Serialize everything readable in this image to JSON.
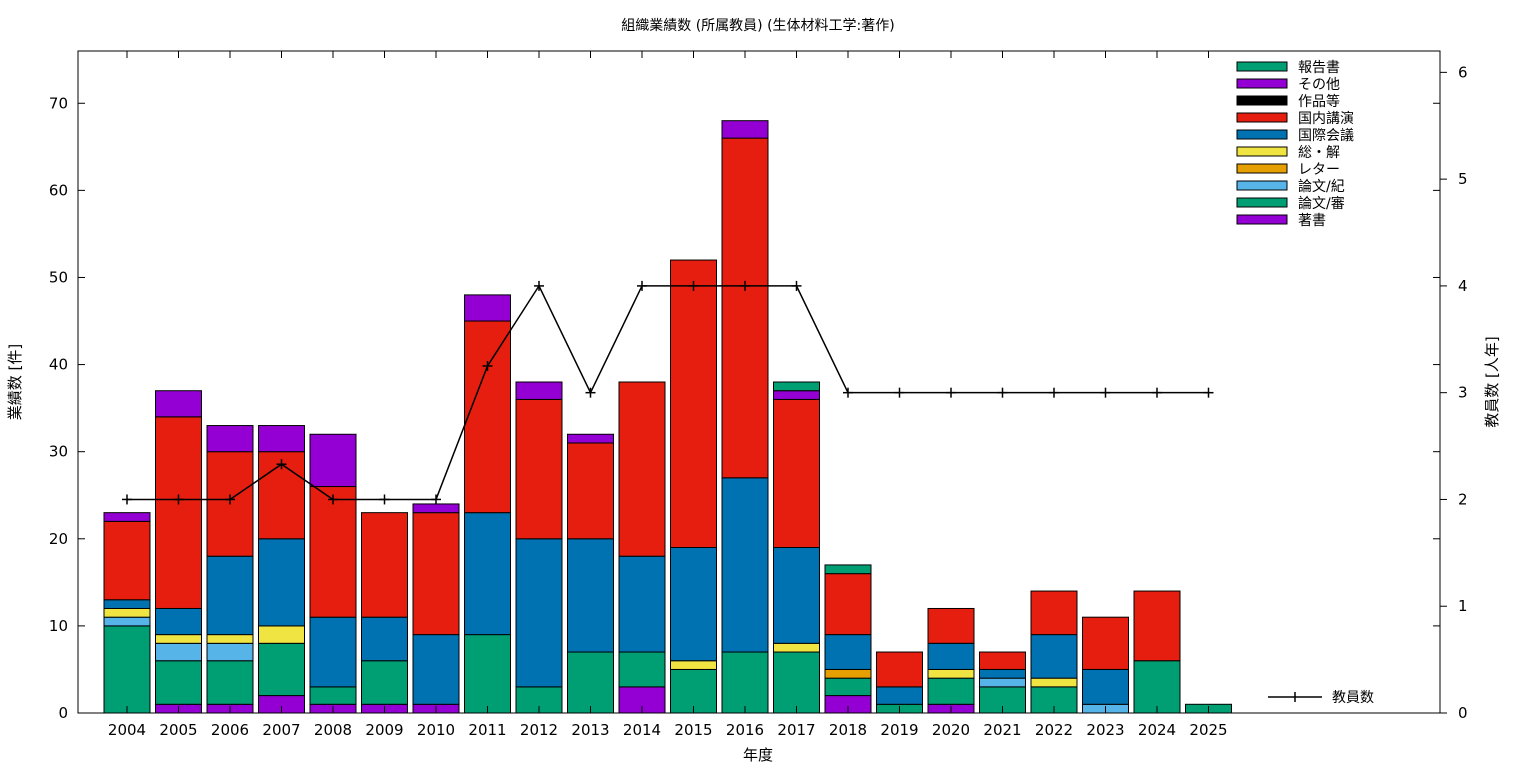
{
  "chart_data": {
    "type": "bar",
    "stacked": true,
    "title": "組織業績数 (所属教員) (生体材料工学:著作)",
    "xlabel": "年度",
    "ylabel": "業績数 [件]",
    "y2label": "教員数 [人年]",
    "ylim": [
      0,
      76
    ],
    "y2lim": [
      0,
      6.2
    ],
    "yticks": [
      0,
      10,
      20,
      30,
      40,
      50,
      60,
      70
    ],
    "y2ticks": [
      0,
      1,
      2,
      3,
      4,
      5,
      6
    ],
    "categories": [
      "2004",
      "2005",
      "2006",
      "2007",
      "2008",
      "2009",
      "2010",
      "2011",
      "2012",
      "2013",
      "2014",
      "2015",
      "2016",
      "2017",
      "2018",
      "2019",
      "2020",
      "2021",
      "2022",
      "2023",
      "2024",
      "2025"
    ],
    "series": [
      {
        "name": "著書",
        "color": "#9400d3",
        "values": [
          0,
          1,
          1,
          2,
          1,
          1,
          1,
          0,
          0,
          0,
          3,
          0,
          0,
          0,
          2,
          0,
          1,
          0,
          0,
          0,
          0,
          0
        ]
      },
      {
        "name": "論文/審",
        "color": "#009e73",
        "values": [
          10,
          5,
          5,
          6,
          2,
          5,
          0,
          9,
          3,
          7,
          4,
          5,
          7,
          7,
          2,
          1,
          3,
          3,
          3,
          0,
          6,
          1
        ]
      },
      {
        "name": "論文/紀",
        "color": "#56b4e9",
        "values": [
          1,
          2,
          2,
          0,
          0,
          0,
          0,
          0,
          0,
          0,
          0,
          0,
          0,
          0,
          0,
          0,
          0,
          1,
          0,
          1,
          0,
          0
        ]
      },
      {
        "name": "レター",
        "color": "#e69f00",
        "values": [
          0,
          0,
          0,
          0,
          0,
          0,
          0,
          0,
          0,
          0,
          0,
          0,
          0,
          0,
          1,
          0,
          0,
          0,
          0,
          0,
          0,
          0
        ]
      },
      {
        "name": "総・解",
        "color": "#f0e442",
        "values": [
          1,
          1,
          1,
          2,
          0,
          0,
          0,
          0,
          0,
          0,
          0,
          1,
          0,
          1,
          0,
          0,
          1,
          0,
          1,
          0,
          0,
          0
        ]
      },
      {
        "name": "国際会議",
        "color": "#0072b2",
        "values": [
          1,
          3,
          9,
          10,
          8,
          5,
          8,
          14,
          17,
          13,
          11,
          13,
          20,
          11,
          4,
          2,
          3,
          1,
          5,
          4,
          0,
          0
        ]
      },
      {
        "name": "国内講演",
        "color": "#e51e10",
        "values": [
          9,
          22,
          12,
          10,
          15,
          12,
          14,
          22,
          16,
          11,
          20,
          33,
          39,
          17,
          7,
          4,
          4,
          2,
          5,
          6,
          8,
          0
        ]
      },
      {
        "name": "作品等",
        "color": "#000000",
        "values": [
          0,
          0,
          0,
          0,
          0,
          0,
          0,
          0,
          0,
          0,
          0,
          0,
          0,
          0,
          0,
          0,
          0,
          0,
          0,
          0,
          0,
          0
        ]
      },
      {
        "name": "その他",
        "color": "#9400d3",
        "values": [
          1,
          3,
          3,
          3,
          6,
          0,
          1,
          3,
          2,
          1,
          0,
          0,
          2,
          1,
          0,
          0,
          0,
          0,
          0,
          0,
          0,
          0
        ]
      },
      {
        "name": "報告書",
        "color": "#009e73",
        "values": [
          0,
          0,
          0,
          0,
          0,
          0,
          0,
          0,
          0,
          0,
          0,
          0,
          0,
          1,
          1,
          0,
          0,
          0,
          0,
          0,
          0,
          0
        ]
      }
    ],
    "legend": {
      "position": "top-right",
      "order": [
        "報告書",
        "その他",
        "作品等",
        "国内講演",
        "国際会議",
        "総・解",
        "レター",
        "論文/紀",
        "論文/審",
        "著書"
      ]
    },
    "line_series": {
      "name": "教員数",
      "color": "#000000",
      "axis": "y2",
      "legend_position": "bottom-right",
      "values": [
        2,
        2,
        2,
        2.33,
        2,
        2,
        2,
        3.25,
        4,
        3,
        4,
        4,
        4,
        4,
        3,
        3,
        3,
        3,
        3,
        3,
        3,
        3
      ]
    }
  }
}
